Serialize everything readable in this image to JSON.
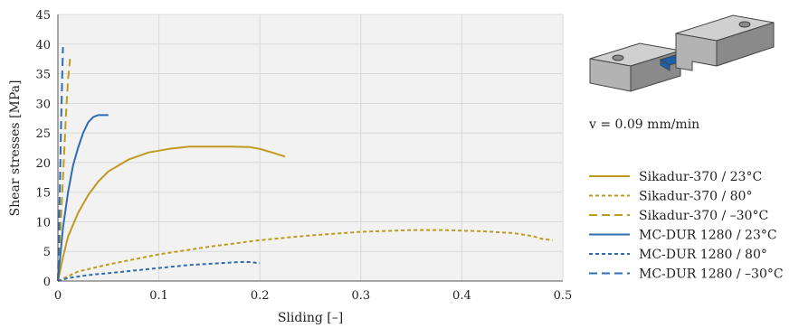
{
  "chart_data": {
    "type": "line",
    "title": "",
    "xlabel": "Sliding [–]",
    "ylabel": "Shear stresses [MPa]",
    "xlim": [
      0,
      0.5
    ],
    "ylim": [
      0,
      45
    ],
    "xticks": [
      0,
      0.1,
      0.2,
      0.3,
      0.4,
      0.5
    ],
    "xtick_labels": [
      "0",
      "0.1",
      "0.2",
      "0.3",
      "0.4",
      "0.5"
    ],
    "yticks": [
      0,
      5,
      10,
      15,
      20,
      25,
      30,
      35,
      40,
      45
    ],
    "ytick_labels": [
      "0",
      "5",
      "10",
      "15",
      "20",
      "25",
      "30",
      "35",
      "40",
      "45"
    ],
    "grid": "vertical-and-horizontal",
    "legend_position": "right",
    "annotation": "v = 0.09 mm/min",
    "series": [
      {
        "name": "Sikadur-370 / 23°C",
        "color": "#c09a1e",
        "dash": "solid",
        "x": [
          0,
          0.005,
          0.01,
          0.02,
          0.03,
          0.04,
          0.05,
          0.07,
          0.09,
          0.11,
          0.13,
          0.15,
          0.17,
          0.19,
          0.2,
          0.21,
          0.225
        ],
        "y": [
          0,
          4,
          7.5,
          11.5,
          14.5,
          16.8,
          18.5,
          20.5,
          21.7,
          22.3,
          22.7,
          22.7,
          22.7,
          22.6,
          22.3,
          21.8,
          21
        ]
      },
      {
        "name": "Sikadur-370 / 80°",
        "color": "#c09a1e",
        "dash": "short",
        "x": [
          0,
          0.02,
          0.05,
          0.1,
          0.15,
          0.2,
          0.25,
          0.3,
          0.35,
          0.38,
          0.42,
          0.45,
          0.47,
          0.48,
          0.49
        ],
        "y": [
          0,
          1.6,
          2.8,
          4.5,
          5.8,
          6.9,
          7.7,
          8.3,
          8.6,
          8.6,
          8.4,
          8.1,
          7.6,
          7.1,
          6.9
        ]
      },
      {
        "name": "Sikadur-370 / –30°C",
        "color": "#c09a1e",
        "dash": "long",
        "x": [
          0,
          0.002,
          0.004,
          0.006,
          0.008,
          0.01,
          0.012
        ],
        "y": [
          0,
          7,
          14,
          21,
          28,
          34,
          37.5
        ]
      },
      {
        "name": "MC-DUR 1280 / 23°C",
        "color": "#2e6db1",
        "dash": "solid",
        "x": [
          0,
          0.005,
          0.01,
          0.015,
          0.02,
          0.025,
          0.03,
          0.035,
          0.04,
          0.045,
          0.05
        ],
        "y": [
          0,
          9,
          15,
          19.5,
          22.5,
          25,
          26.8,
          27.7,
          28,
          28,
          28
        ]
      },
      {
        "name": "MC-DUR 1280 / 80°",
        "color": "#2e6db1",
        "dash": "short",
        "x": [
          0,
          0.01,
          0.03,
          0.06,
          0.1,
          0.13,
          0.16,
          0.18,
          0.19,
          0.2
        ],
        "y": [
          0,
          0.5,
          1,
          1.5,
          2.2,
          2.7,
          3,
          3.2,
          3.2,
          3
        ]
      },
      {
        "name": "MC-DUR 1280 / –30°C",
        "color": "#2e6db1",
        "dash": "long",
        "x": [
          0,
          0.001,
          0.002,
          0.003,
          0.004,
          0.005
        ],
        "y": [
          0,
          8,
          16,
          25,
          33,
          39.5
        ]
      }
    ]
  },
  "illustration": {
    "name": "specimen-drawing",
    "body_color": "#b3b3b3",
    "dark_color": "#8a8a8a",
    "light_color": "#d0d0d0",
    "adhesive_color": "#1d5fa8"
  }
}
